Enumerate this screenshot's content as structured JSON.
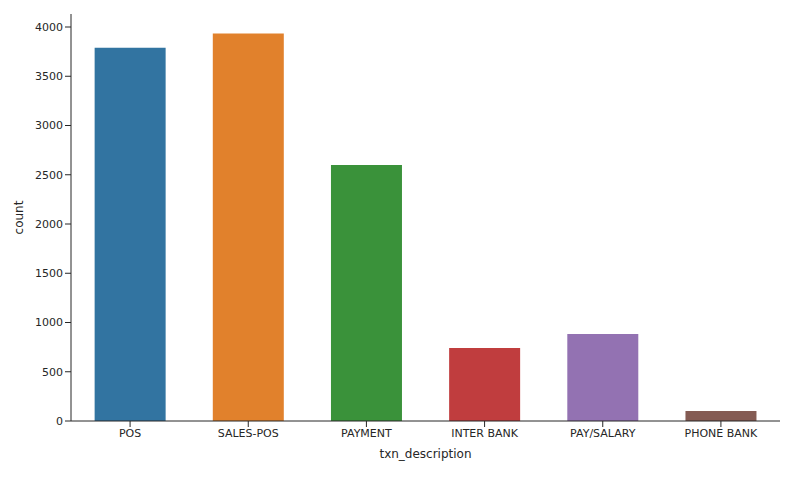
{
  "chart_data": {
    "type": "bar",
    "x_label": "txn_description",
    "y_label": "count",
    "categories": [
      "POS",
      "SALES-POS",
      "PAYMENT",
      "INTER BANK",
      "PAY/SALARY",
      "PHONE BANK"
    ],
    "values": [
      3790,
      3935,
      2600,
      742,
      883,
      101
    ],
    "colors": [
      "#3274a1",
      "#e1812c",
      "#3a923a",
      "#c03d3e",
      "#9372b2",
      "#845b53"
    ],
    "ylim": [
      0,
      4132
    ],
    "yticks": [
      0,
      500,
      1000,
      1500,
      2000,
      2500,
      3000,
      3500,
      4000
    ],
    "grid": false
  }
}
